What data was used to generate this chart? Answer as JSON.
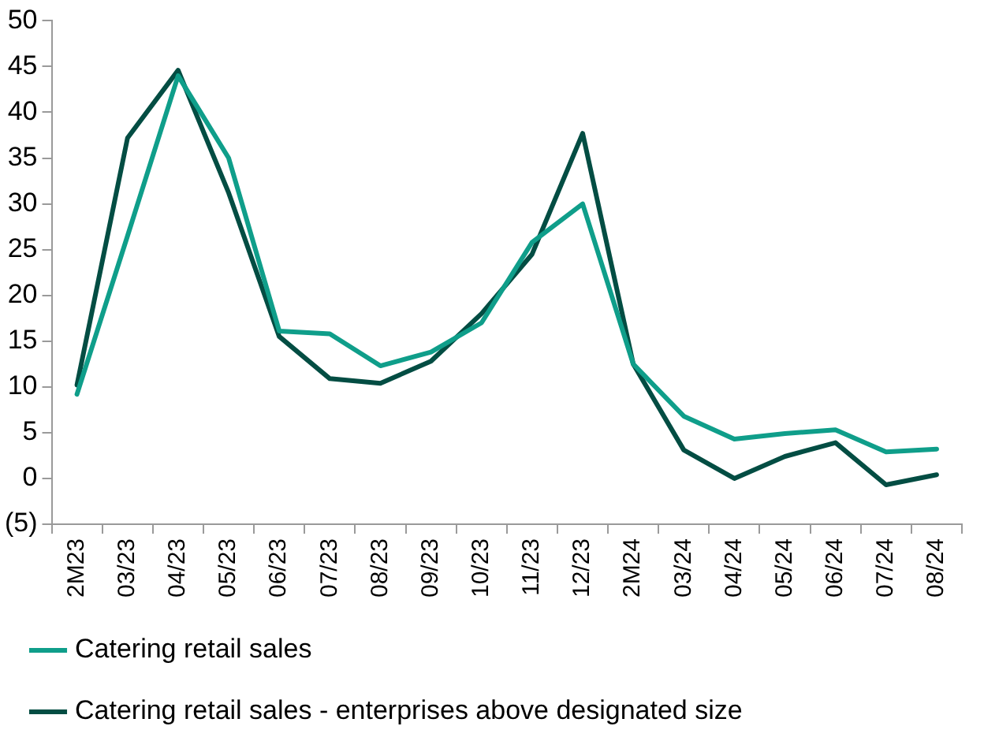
{
  "chart_data": {
    "type": "line",
    "categories": [
      "2M23",
      "03/23",
      "04/23",
      "05/23",
      "06/23",
      "07/23",
      "08/23",
      "09/23",
      "10/23",
      "11/23",
      "12/23",
      "2M24",
      "03/24",
      "04/24",
      "05/24",
      "06/24",
      "07/24",
      "08/24"
    ],
    "series": [
      {
        "name": "Catering retail sales",
        "color": "#0f9e8a",
        "values": [
          9.2,
          26.5,
          44,
          35,
          16.1,
          15.8,
          12.3,
          13.8,
          17,
          25.8,
          30,
          12.5,
          6.8,
          4.3,
          4.9,
          5.3,
          2.9,
          3.2
        ]
      },
      {
        "name": "Catering retail sales - enterprises above designated size",
        "color": "#034d43",
        "values": [
          10.2,
          37.2,
          44.6,
          31.2,
          15.5,
          10.9,
          10.4,
          12.8,
          18,
          24.5,
          37.7,
          12.5,
          3.1,
          0,
          2.4,
          3.9,
          -0.7,
          0.4
        ]
      }
    ],
    "ylim": [
      -5,
      50
    ],
    "yticks": [
      {
        "value": -5,
        "label": "(5)"
      },
      0,
      5,
      10,
      15,
      20,
      25,
      30,
      35,
      40,
      45,
      50
    ],
    "grid": false,
    "legend": "bottom",
    "marker": "none",
    "line_style": "solid"
  }
}
